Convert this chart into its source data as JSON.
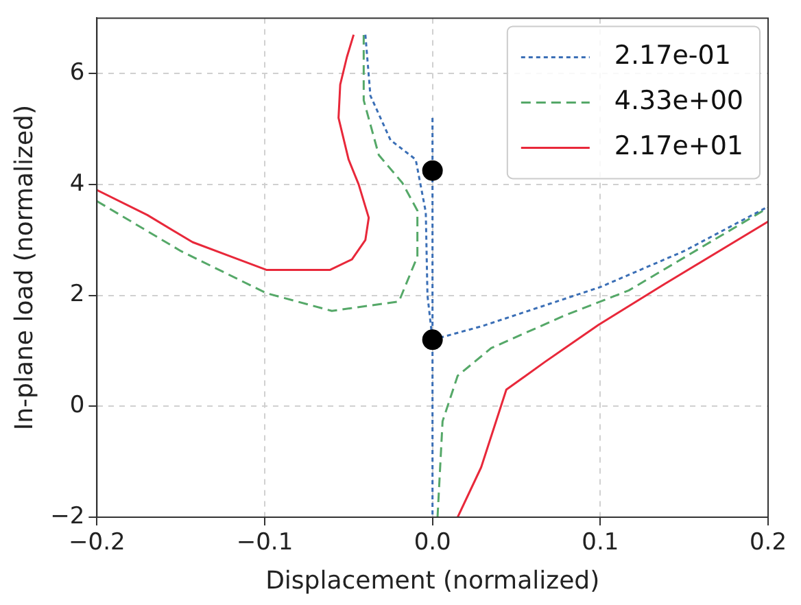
{
  "chart_data": {
    "type": "line",
    "xlabel": "Displacement (normalized)",
    "ylabel": "In-plane load (normalized)",
    "xlim": [
      -0.2,
      0.2
    ],
    "ylim": [
      -2,
      7
    ],
    "xticks": [
      {
        "value": -0.2,
        "label": "−0.2"
      },
      {
        "value": -0.1,
        "label": "−0.1"
      },
      {
        "value": 0,
        "label": "0.0"
      },
      {
        "value": 0.1,
        "label": "0.1"
      },
      {
        "value": 0.2,
        "label": "0.2"
      }
    ],
    "yticks": [
      {
        "value": -2,
        "label": "−2"
      },
      0,
      2,
      4,
      6
    ],
    "grid": true,
    "legend": "top right",
    "marker": "none",
    "series": [
      {
        "name": "2.17e-01",
        "color": "#3b6fb6",
        "line_style": "dotted",
        "x": [
          -0.04,
          -0.037,
          -0.025,
          -0.01,
          -0.004,
          -0.003,
          0,
          null,
          0,
          0,
          null,
          0,
          0.03,
          0.07,
          0.1,
          0.15,
          0.2
        ],
        "values": [
          6.7,
          5.6,
          4.8,
          4.45,
          3.5,
          2.0,
          1.2,
          null,
          5.2,
          -2,
          null,
          1.2,
          1.45,
          1.85,
          2.15,
          2.8,
          3.6
        ]
      },
      {
        "name": "4.33e+00",
        "color": "#55a868",
        "line_style": "dashed",
        "x": [
          -0.2,
          -0.15,
          -0.099,
          -0.06,
          -0.02,
          -0.009,
          -0.009,
          -0.018,
          -0.032,
          -0.041,
          -0.041,
          null,
          0.003,
          0.006,
          0.015,
          0.035,
          0.079,
          0.117,
          0.2
        ],
        "values": [
          3.7,
          2.8,
          2.04,
          1.72,
          1.89,
          2.7,
          3.53,
          4.03,
          4.53,
          5.52,
          6.7,
          null,
          -2,
          -0.27,
          0.55,
          1.05,
          1.64,
          2.09,
          3.58
        ]
      },
      {
        "name": "2.17e+01",
        "color": "#e8283a",
        "line_style": "solid",
        "x": [
          -0.2,
          -0.17,
          -0.143,
          -0.12,
          -0.099,
          -0.061,
          -0.048,
          -0.04,
          -0.038,
          -0.044,
          -0.05,
          -0.056,
          -0.055,
          -0.051,
          -0.047,
          null,
          0.015,
          0.029,
          0.044,
          0.067,
          0.099,
          0.138,
          0.2
        ],
        "values": [
          3.9,
          3.45,
          2.96,
          2.7,
          2.46,
          2.46,
          2.65,
          3.0,
          3.4,
          4.0,
          4.45,
          5.2,
          5.8,
          6.3,
          6.7,
          null,
          -2,
          -1.1,
          0.3,
          0.8,
          1.47,
          2.2,
          3.33
        ]
      },
      {
        "type": "scatter",
        "color": "#000000",
        "marker": "circle",
        "x": [
          0,
          0
        ],
        "values": [
          4.25,
          1.2
        ]
      }
    ]
  }
}
